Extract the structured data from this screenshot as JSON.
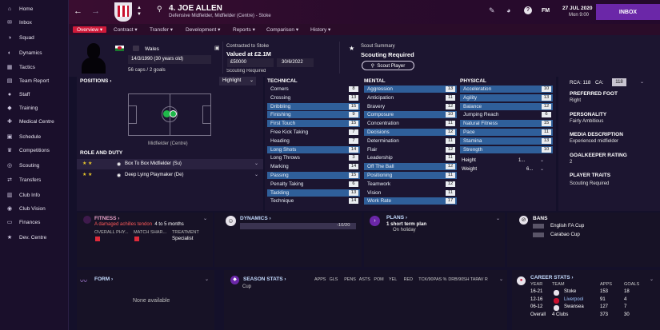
{
  "sidebar": {
    "items": [
      {
        "label": "Home",
        "icon": "home-icon"
      },
      {
        "label": "Inbox",
        "icon": "inbox-icon"
      },
      {
        "label": "Squad",
        "icon": "squad-icon"
      },
      {
        "label": "Dynamics",
        "icon": "dynamics-icon"
      },
      {
        "label": "Tactics",
        "icon": "tactics-icon"
      },
      {
        "label": "Team Report",
        "icon": "team-report-icon"
      },
      {
        "label": "Staff",
        "icon": "staff-icon"
      },
      {
        "label": "Training",
        "icon": "training-icon"
      },
      {
        "label": "Medical Centre",
        "icon": "medical-icon"
      },
      {
        "label": "Schedule",
        "icon": "schedule-icon"
      },
      {
        "label": "Competitions",
        "icon": "competitions-icon"
      },
      {
        "label": "Scouting",
        "icon": "scouting-icon"
      },
      {
        "label": "Transfers",
        "icon": "transfers-icon"
      },
      {
        "label": "Club Info",
        "icon": "club-info-icon"
      },
      {
        "label": "Club Vision",
        "icon": "club-vision-icon"
      },
      {
        "label": "Finances",
        "icon": "finances-icon"
      },
      {
        "label": "Dev. Centre",
        "icon": "dev-centre-icon"
      }
    ]
  },
  "topbar": {
    "player_number_name": "4. JOE ALLEN",
    "player_role": "Defensive Midfielder, Midfielder (Centre) - Stoke",
    "date": "27 JUL 2020",
    "time": "Mon 9:00",
    "inbox_label": "INBOX",
    "fm_label": "FM"
  },
  "nav": {
    "tabs": [
      "Overview",
      "Contract",
      "Transfer",
      "Development",
      "Reports",
      "Comparison",
      "History"
    ]
  },
  "profile": {
    "nation": "Wales",
    "dob": "14/3/1990 (30 years old)",
    "caps": "56 caps / 2 goals"
  },
  "contract": {
    "title": "Contracted to Stoke",
    "value": "Valued at £2.1M",
    "wage": "£50000",
    "expiry": "30/6/2022",
    "status": "Scouting Required"
  },
  "scout": {
    "title": "Scout Summary",
    "status": "Scouting Required",
    "button": "Scout Player"
  },
  "positions": {
    "title": "POSITIONS",
    "dropdown": "Highlight",
    "caption": "Midfielder (Centre)",
    "role_title": "ROLE AND DUTY",
    "roles": [
      "Box To Box Midfielder (Su)",
      "Deep Lying Playmaker (De)"
    ]
  },
  "technical": {
    "title": "TECHNICAL",
    "rows": [
      [
        "Corners",
        "8"
      ],
      [
        "Crossing",
        "13"
      ],
      [
        "Dribbling",
        "15"
      ],
      [
        "Finishing",
        "9"
      ],
      [
        "First Touch",
        "15"
      ],
      [
        "Free Kick Taking",
        "7"
      ],
      [
        "Heading",
        "7"
      ],
      [
        "Long Shots",
        "14"
      ],
      [
        "Long Throws",
        "3"
      ],
      [
        "Marking",
        "14"
      ],
      [
        "Passing",
        "15"
      ],
      [
        "Penalty Taking",
        "6"
      ],
      [
        "Tackling",
        "13"
      ],
      [
        "Technique",
        "14"
      ]
    ]
  },
  "mental": {
    "title": "MENTAL",
    "rows": [
      [
        "Aggression",
        "13"
      ],
      [
        "Anticipation",
        "11"
      ],
      [
        "Bravery",
        "12"
      ],
      [
        "Composure",
        "10"
      ],
      [
        "Concentration",
        "11"
      ],
      [
        "Decisions",
        "12"
      ],
      [
        "Determination",
        "11"
      ],
      [
        "Flair",
        "12"
      ],
      [
        "Leadership",
        "11"
      ],
      [
        "Off The Ball",
        "12"
      ],
      [
        "Positioning",
        "11"
      ],
      [
        "Teamwork",
        "12"
      ],
      [
        "Vision",
        "11"
      ],
      [
        "Work Rate",
        "17"
      ]
    ]
  },
  "physical": {
    "title": "PHYSICAL",
    "rows": [
      [
        "Acceleration",
        "10"
      ],
      [
        "Agility",
        "13"
      ],
      [
        "Balance",
        "12"
      ],
      [
        "Jumping Reach",
        "6"
      ],
      [
        "Natural Fitness",
        "15"
      ],
      [
        "Pace",
        "11"
      ],
      [
        "Stamina",
        "13"
      ],
      [
        "Strength",
        "10"
      ]
    ],
    "height_label": "Height",
    "height_value": "1...",
    "weight_label": "Weight",
    "weight_value": "6..."
  },
  "info": {
    "rca": "RCA: 118",
    "ca_label": "CA:",
    "ca_value": "118",
    "preferred_foot_title": "PREFERRED FOOT",
    "preferred_foot": "Right",
    "personality_title": "PERSONALITY",
    "personality": "Fairly Ambitious",
    "media_title": "MEDIA DESCRIPTION",
    "media": "Experienced midfielder",
    "gk_title": "GOALKEEPER RATING",
    "gk": "2",
    "traits_title": "PLAYER TRAITS",
    "traits": "Scouting Required"
  },
  "fitness": {
    "title": "FITNESS",
    "injury": "A damaged achilles tendon",
    "duration": "4 to 5 months",
    "col1": "OVERALL PHY...",
    "col2": "MATCH SHAR...",
    "col3": "TREATMENT",
    "treatment": "Specialist"
  },
  "dynamics": {
    "title": "DYNAMICS",
    "value": "-10/20"
  },
  "plans": {
    "title": "PLANS",
    "plan": "1 short term plan",
    "status": "On holiday"
  },
  "bans": {
    "title": "BANS",
    "items": [
      "English FA Cup",
      "Carabao Cup"
    ]
  },
  "form": {
    "title": "FORM",
    "empty": "None available"
  },
  "season_stats": {
    "title": "SEASON STATS",
    "headers": [
      "APPS",
      "GLS",
      "PENS",
      "ASTS",
      "POM",
      "YEL",
      "RED",
      "TCK/90",
      "PAS %",
      "DRB/90",
      "SH TAR",
      "AV R"
    ],
    "row_label": "Cup"
  },
  "career": {
    "title": "CAREER STATS",
    "headers": [
      "YEAR",
      "TEAM",
      "APPS",
      "GOALS"
    ],
    "rows": [
      [
        "16-21",
        "Stoke",
        "153",
        "18"
      ],
      [
        "12-16",
        "Liverpool",
        "91",
        "4"
      ],
      [
        "06-12",
        "Swansea",
        "127",
        "7"
      ],
      [
        "Overall",
        "4 Clubs",
        "373",
        "30"
      ]
    ]
  },
  "colors": {
    "accent": "#d01a3a",
    "bar": "#2f5f9a",
    "panel": "#1c1530"
  }
}
